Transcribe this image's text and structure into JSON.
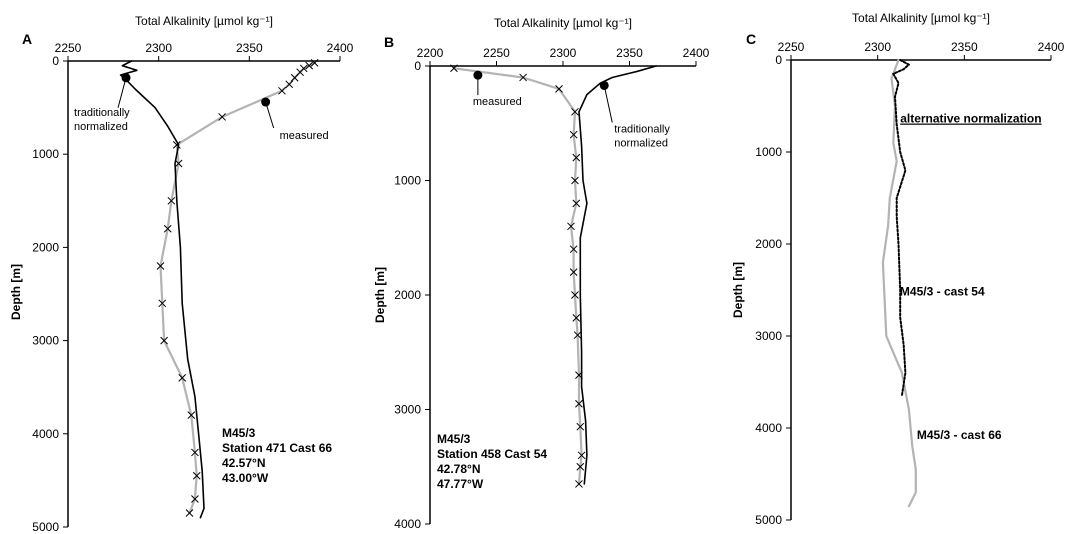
{
  "chart_data": [
    {
      "type": "line",
      "panel_letter": "A",
      "xlabel": "Total Alkalinity [µmol kg⁻¹]",
      "ylabel": "Depth [m]",
      "x_axis_position": "top",
      "y_inverted": true,
      "xlim": [
        2250,
        2400
      ],
      "ylim": [
        0,
        5000
      ],
      "x_ticks": [
        2250,
        2300,
        2350,
        2400
      ],
      "y_ticks": [
        0,
        1000,
        2000,
        3000,
        4000,
        5000
      ],
      "series": [
        {
          "name": "measured",
          "color": "#b3b3b3",
          "marker": "x",
          "depth": [
            20,
            50,
            80,
            120,
            180,
            250,
            320,
            600,
            900,
            1100,
            1500,
            1800,
            2200,
            2600,
            3000,
            3400,
            3800,
            4200,
            4450,
            4700,
            4850
          ],
          "values": [
            2386,
            2383,
            2380,
            2378,
            2375,
            2372,
            2368,
            2335,
            2310,
            2311,
            2307,
            2305,
            2301,
            2302,
            2303,
            2313,
            2318,
            2320,
            2321,
            2320,
            2317
          ]
        },
        {
          "name": "traditionally normalized",
          "color": "#000000",
          "marker": "none",
          "depth": [
            0,
            50,
            100,
            150,
            200,
            300,
            500,
            700,
            900,
            1100,
            1500,
            2000,
            2600,
            3200,
            3600,
            4000,
            4400,
            4800,
            4900
          ],
          "values": [
            2285,
            2280,
            2288,
            2279,
            2282,
            2287,
            2298,
            2305,
            2311,
            2309,
            2310,
            2312,
            2313,
            2316,
            2320,
            2322,
            2324,
            2325,
            2323
          ]
        }
      ],
      "annotations": [
        {
          "text": "traditionally",
          "x": 2282,
          "depth": 180
        },
        {
          "text": "normalized",
          "x": 2282,
          "depth": 180
        },
        {
          "text": "measured",
          "x": 2359,
          "depth": 440
        }
      ],
      "info_lines": [
        "M45/3",
        "Station 471 Cast 66",
        "42.57°N",
        "43.00°W"
      ]
    },
    {
      "type": "line",
      "panel_letter": "B",
      "xlabel": "Total Alkalinity [µmol kg⁻¹]",
      "ylabel": "Depth [m]",
      "x_axis_position": "top",
      "y_inverted": true,
      "xlim": [
        2200,
        2400
      ],
      "ylim": [
        0,
        4000
      ],
      "x_ticks": [
        2200,
        2250,
        2300,
        2350,
        2400
      ],
      "y_ticks": [
        0,
        1000,
        2000,
        3000,
        4000
      ],
      "series": [
        {
          "name": "measured",
          "color": "#b3b3b3",
          "marker": "x",
          "depth": [
            20,
            100,
            200,
            400,
            600,
            800,
            1000,
            1200,
            1400,
            1600,
            1800,
            2000,
            2200,
            2350,
            2700,
            2950,
            3150,
            3400,
            3500,
            3650
          ],
          "values": [
            2218,
            2270,
            2297,
            2309,
            2308,
            2310,
            2309,
            2310,
            2306,
            2308,
            2308,
            2309,
            2310,
            2311,
            2312,
            2312,
            2313,
            2314,
            2313,
            2312
          ]
        },
        {
          "name": "traditionally normalized",
          "color": "#000000",
          "marker": "none",
          "depth": [
            0,
            50,
            100,
            150,
            250,
            400,
            700,
            1000,
            1200,
            1500,
            2000,
            2500,
            2800,
            3100,
            3400,
            3650
          ],
          "values": [
            2370,
            2355,
            2337,
            2328,
            2318,
            2312,
            2314,
            2315,
            2318,
            2313,
            2313,
            2314,
            2314,
            2317,
            2318,
            2316
          ]
        }
      ],
      "annotations": [
        {
          "text": "measured",
          "x": 2236,
          "depth": 80
        },
        {
          "text": "traditionally",
          "x": 2331,
          "depth": 170
        },
        {
          "text": "normalized",
          "x": 2331,
          "depth": 170
        }
      ],
      "info_lines": [
        "M45/3",
        "Station 458 Cast 54",
        "42.78°N",
        "47.77°W"
      ]
    },
    {
      "type": "line",
      "panel_letter": "C",
      "xlabel": "Total Alkalinity [µmol kg⁻¹]",
      "ylabel": "Depth [m]",
      "x_axis_position": "top",
      "y_inverted": true,
      "xlim": [
        2250,
        2400
      ],
      "ylim": [
        0,
        5000
      ],
      "x_ticks": [
        2250,
        2300,
        2350,
        2400
      ],
      "y_ticks": [
        0,
        1000,
        2000,
        3000,
        4000,
        5000
      ],
      "series": [
        {
          "name": "M45/3 - cast 66",
          "color": "#b3b3b3",
          "style": "solid",
          "depth": [
            0,
            100,
            200,
            500,
            900,
            1100,
            1500,
            1800,
            2200,
            2600,
            3000,
            3400,
            3800,
            4200,
            4450,
            4700,
            4850
          ],
          "values": [
            2312,
            2310,
            2308,
            2310,
            2309,
            2311,
            2307,
            2306,
            2303,
            2304,
            2305,
            2314,
            2318,
            2320,
            2322,
            2322,
            2318
          ]
        },
        {
          "name": "M45/3 - cast 54",
          "color": "#000000",
          "style": "dotted",
          "depth": [
            0,
            50,
            100,
            150,
            250,
            400,
            700,
            1000,
            1200,
            1500,
            1700,
            2000,
            2500,
            2800,
            3100,
            3400,
            3650
          ],
          "values": [
            2313,
            2318,
            2315,
            2309,
            2312,
            2310,
            2311,
            2313,
            2316,
            2311,
            2311,
            2312,
            2313,
            2313,
            2315,
            2316,
            2314
          ]
        }
      ],
      "annotations": [
        {
          "text": "alternative normalization",
          "x": 2313,
          "depth": 680
        },
        {
          "text": "M45/3 - cast 54",
          "x": 2314,
          "depth": 2560
        },
        {
          "text": "M45/3 - cast 66",
          "x": 2318,
          "depth": 4120
        }
      ],
      "info_lines": []
    }
  ]
}
